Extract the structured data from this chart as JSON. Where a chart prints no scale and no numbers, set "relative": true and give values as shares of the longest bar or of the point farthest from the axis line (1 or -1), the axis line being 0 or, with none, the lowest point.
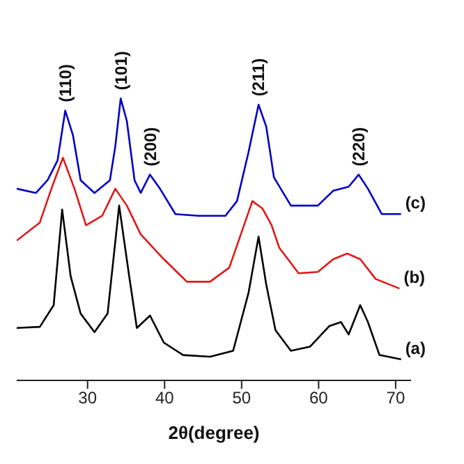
{
  "chart_data": {
    "type": "line",
    "relative": true,
    "xlabel": "2θ(degree)",
    "xlim": [
      20.8,
      72
    ],
    "xticks": [
      30,
      40,
      50,
      60,
      70
    ],
    "grid": false,
    "legend": false,
    "marker": "none",
    "line_style": "solid",
    "annotations": [
      {
        "text": "(110)",
        "x": 27.1,
        "y": 0.957
      },
      {
        "text": "(101)",
        "x": 34.3,
        "y": 1.0
      },
      {
        "text": "(200)",
        "x": 38.1,
        "y": 0.73
      },
      {
        "text": "(211)",
        "x": 52.2,
        "y": 0.978
      },
      {
        "text": "(220)",
        "x": 65.2,
        "y": 0.73
      }
    ],
    "series": [
      {
        "name": "(c)",
        "color": "#0000c8",
        "x": [
          20.8,
          23.3,
          24.8,
          26.1,
          27.1,
          28.1,
          29.1,
          30.9,
          32.9,
          33.6,
          34.3,
          35.1,
          36.1,
          36.9,
          38.1,
          39.4,
          41.4,
          44.4,
          47.9,
          49.4,
          50.9,
          52.2,
          53.2,
          54.2,
          56.4,
          59.9,
          61.9,
          63.9,
          65.2,
          66.4,
          68.2,
          70.7
        ],
        "values": [
          0.68,
          0.665,
          0.71,
          0.78,
          0.957,
          0.87,
          0.71,
          0.665,
          0.71,
          0.83,
          1.0,
          0.92,
          0.71,
          0.665,
          0.73,
          0.68,
          0.59,
          0.584,
          0.584,
          0.636,
          0.81,
          0.978,
          0.9,
          0.72,
          0.62,
          0.62,
          0.673,
          0.687,
          0.73,
          0.68,
          0.59,
          0.59
        ]
      },
      {
        "name": "(b)",
        "color": "#e01818",
        "x": [
          20.8,
          23.8,
          25.3,
          26.8,
          28.3,
          29.8,
          31.9,
          33.6,
          35.1,
          36.9,
          39.9,
          42.9,
          45.9,
          48.4,
          49.9,
          51.4,
          52.7,
          53.9,
          54.9,
          57.4,
          59.9,
          61.9,
          63.7,
          65.4,
          67.4,
          70.5
        ],
        "values": [
          0.496,
          0.56,
          0.68,
          0.79,
          0.68,
          0.55,
          0.584,
          0.68,
          0.62,
          0.518,
          0.43,
          0.35,
          0.35,
          0.4,
          0.518,
          0.636,
          0.61,
          0.55,
          0.47,
          0.38,
          0.385,
          0.43,
          0.45,
          0.43,
          0.36,
          0.326
        ]
      },
      {
        "name": "(a)",
        "color": "#000000",
        "x": [
          20.8,
          23.8,
          25.6,
          26.7,
          27.8,
          29.1,
          30.9,
          32.6,
          34.1,
          35.4,
          36.4,
          38.1,
          39.9,
          42.4,
          45.9,
          48.9,
          50.9,
          52.2,
          53.2,
          54.4,
          56.4,
          58.9,
          61.4,
          62.9,
          63.9,
          65.4,
          66.4,
          67.9,
          70.7
        ],
        "values": [
          0.186,
          0.19,
          0.267,
          0.606,
          0.37,
          0.237,
          0.171,
          0.237,
          0.62,
          0.37,
          0.186,
          0.23,
          0.134,
          0.09,
          0.084,
          0.105,
          0.311,
          0.51,
          0.34,
          0.178,
          0.105,
          0.12,
          0.193,
          0.207,
          0.163,
          0.267,
          0.207,
          0.09,
          0.075
        ]
      }
    ]
  }
}
